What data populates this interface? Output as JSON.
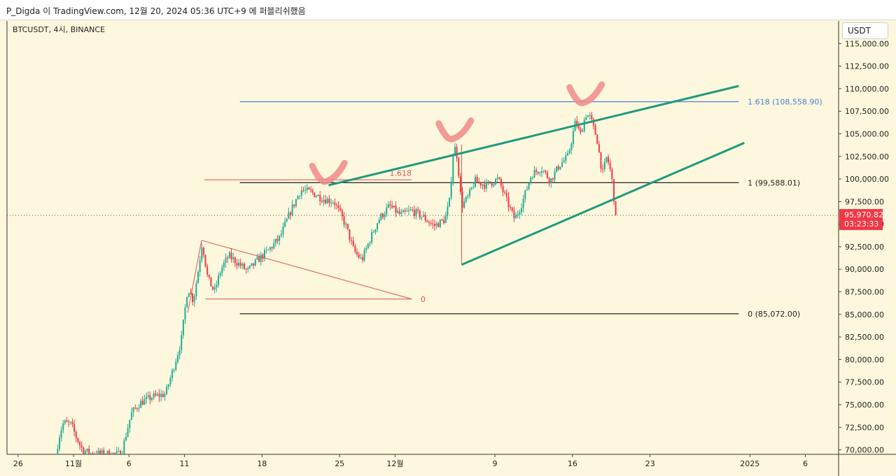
{
  "window_title": "P_Digda 이 TradingView.com, 12월 20, 2024 05:36 UTC+9 에 퍼블리쉬했음",
  "symbol_line": "BTCUSDT, 4시, BINANCE",
  "currency_button": "USDT",
  "chart_data": {
    "type": "candlestick",
    "y_axis": {
      "min": 69500,
      "max": 117500,
      "ticks": [
        70000,
        72500,
        75000,
        77500,
        80000,
        82500,
        85000,
        87500,
        90000,
        92500,
        95000,
        97500,
        100000,
        102500,
        105000,
        107500,
        110000,
        112500,
        115000
      ],
      "tick_labels": [
        "70,000.00",
        "72,500.00",
        "75,000.00",
        "77,500.00",
        "80,000.00",
        "82,500.00",
        "85,000.00",
        "87,500.00",
        "90,000.00",
        "92,500.00",
        "95,000.00",
        "97,500.00",
        "100,000.00",
        "102,500.00",
        "105,000.00",
        "107,500.00",
        "110,000.00",
        "112,500.00",
        "115,000.00"
      ]
    },
    "x_axis": {
      "ticks": [
        {
          "day": -9,
          "label": "26"
        },
        {
          "day": -4,
          "label": "11월"
        },
        {
          "day": 1,
          "label": "6"
        },
        {
          "day": 6,
          "label": "11"
        },
        {
          "day": 13,
          "label": "18"
        },
        {
          "day": 20,
          "label": "25"
        },
        {
          "day": 25,
          "label": "12월"
        },
        {
          "day": 34,
          "label": "9"
        },
        {
          "day": 41,
          "label": "16"
        },
        {
          "day": 48,
          "label": "23"
        },
        {
          "day": 57,
          "label": "2025"
        },
        {
          "day": 62,
          "label": "6"
        }
      ]
    },
    "current_price": {
      "value": 95970.82,
      "label": "95,970.82",
      "countdown": "03:23:33"
    },
    "fib_levels": [
      {
        "value": 108558.9,
        "label": "1.618 (108,558.90)",
        "color": "#4a7fd9"
      },
      {
        "value": 99588.01,
        "label": "1 (99,588.01)",
        "color": "#222222"
      },
      {
        "value": 85072.0,
        "label": "0 (85,072.00)",
        "color": "#222222"
      }
    ],
    "small_fib_labels": [
      {
        "label": "1.618",
        "value": 99900,
        "color": "#e05050"
      },
      {
        "label": "0",
        "value": 86700,
        "color": "#e05050"
      }
    ],
    "path": [
      {
        "day": -5.6,
        "price": 69500
      },
      {
        "day": -5.2,
        "price": 72000
      },
      {
        "day": -4.9,
        "price": 73000
      },
      {
        "day": -4.2,
        "price": 72800
      },
      {
        "day": -3.8,
        "price": 71500
      },
      {
        "day": -3.2,
        "price": 70000
      },
      {
        "day": -2.5,
        "price": 69600
      },
      {
        "day": 0.3,
        "price": 69500
      },
      {
        "day": 1.2,
        "price": 74000
      },
      {
        "day": 2.0,
        "price": 75200
      },
      {
        "day": 3.0,
        "price": 75800
      },
      {
        "day": 4.3,
        "price": 76200
      },
      {
        "day": 5.0,
        "price": 79000
      },
      {
        "day": 5.7,
        "price": 82000
      },
      {
        "day": 6.3,
        "price": 88000
      },
      {
        "day": 6.8,
        "price": 86500
      },
      {
        "day": 7.2,
        "price": 89500
      },
      {
        "day": 7.6,
        "price": 93000
      },
      {
        "day": 8.1,
        "price": 89000
      },
      {
        "day": 8.7,
        "price": 87500
      },
      {
        "day": 9.3,
        "price": 90000
      },
      {
        "day": 10.0,
        "price": 91500
      },
      {
        "day": 11.0,
        "price": 90500
      },
      {
        "day": 11.7,
        "price": 89800
      },
      {
        "day": 12.6,
        "price": 91000
      },
      {
        "day": 13.5,
        "price": 92000
      },
      {
        "day": 14.6,
        "price": 93500
      },
      {
        "day": 15.6,
        "price": 96500
      },
      {
        "day": 16.5,
        "price": 98800
      },
      {
        "day": 17.5,
        "price": 98500
      },
      {
        "day": 18.5,
        "price": 97800
      },
      {
        "day": 19.5,
        "price": 97500
      },
      {
        "day": 20.5,
        "price": 95000
      },
      {
        "day": 21.3,
        "price": 92000
      },
      {
        "day": 22.0,
        "price": 91000
      },
      {
        "day": 22.8,
        "price": 93500
      },
      {
        "day": 23.5,
        "price": 95500
      },
      {
        "day": 24.5,
        "price": 97000
      },
      {
        "day": 25.5,
        "price": 96000
      },
      {
        "day": 26.5,
        "price": 96500
      },
      {
        "day": 27.5,
        "price": 95800
      },
      {
        "day": 28.5,
        "price": 94800
      },
      {
        "day": 29.5,
        "price": 95500
      },
      {
        "day": 29.9,
        "price": 97500
      },
      {
        "day": 30.3,
        "price": 103800
      },
      {
        "day": 30.6,
        "price": 102500
      },
      {
        "day": 31.0,
        "price": 97000
      },
      {
        "day": 31.6,
        "price": 98000
      },
      {
        "day": 32.2,
        "price": 99800
      },
      {
        "day": 33.2,
        "price": 99300
      },
      {
        "day": 34.3,
        "price": 100000
      },
      {
        "day": 35.1,
        "price": 97500
      },
      {
        "day": 35.8,
        "price": 95500
      },
      {
        "day": 36.5,
        "price": 97500
      },
      {
        "day": 37.3,
        "price": 100500
      },
      {
        "day": 38.2,
        "price": 101200
      },
      {
        "day": 39.0,
        "price": 99800
      },
      {
        "day": 39.8,
        "price": 101500
      },
      {
        "day": 40.6,
        "price": 102500
      },
      {
        "day": 41.3,
        "price": 106500
      },
      {
        "day": 41.7,
        "price": 104800
      },
      {
        "day": 42.2,
        "price": 107200
      },
      {
        "day": 42.6,
        "price": 106800
      },
      {
        "day": 43.2,
        "price": 104500
      },
      {
        "day": 43.7,
        "price": 100500
      },
      {
        "day": 44.1,
        "price": 102500
      },
      {
        "day": 44.5,
        "price": 100500
      },
      {
        "day": 44.8,
        "price": 97200
      },
      {
        "day": 44.95,
        "price": 95970.82
      }
    ]
  }
}
